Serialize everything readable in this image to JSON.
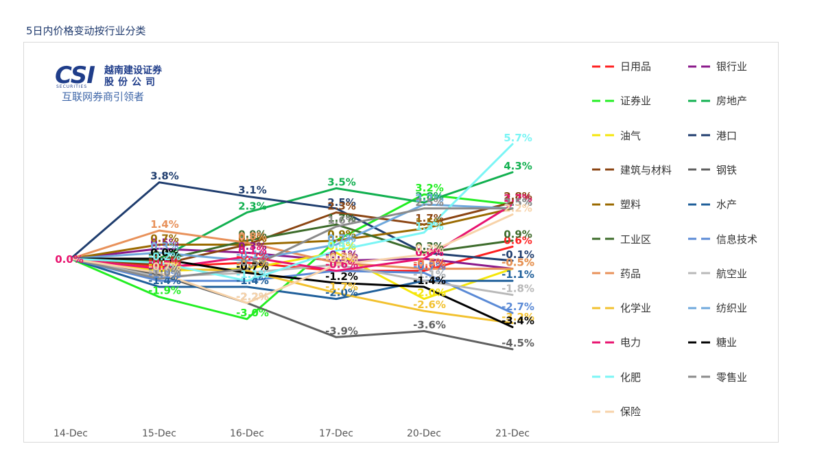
{
  "page": {
    "title": "5日内价格变动按行业分类"
  },
  "logo": {
    "mark": "CSI",
    "sub": "SECURITIES",
    "name_line1": "越南建设证券",
    "name_line2": "股份公司",
    "slogan": "互联网券商引领者"
  },
  "chart_data": {
    "type": "line",
    "categories": [
      "14-Dec",
      "15-Dec",
      "16-Dec",
      "17-Dec",
      "20-Dec",
      "21-Dec"
    ],
    "ylim": [
      -5.5,
      6.5
    ],
    "grid": false,
    "legend": "right",
    "series": [
      {
        "name": "日用品",
        "color": "#ff2020",
        "values": [
          0.0,
          -0.4,
          -0.2,
          -0.6,
          -0.6,
          0.6
        ]
      },
      {
        "name": "银行业",
        "color": "#8b1a8b",
        "values": [
          0.0,
          0.5,
          0.3,
          -0.1,
          0.0,
          -0.5
        ]
      },
      {
        "name": "证券业",
        "color": "#22ee22",
        "values": [
          0.0,
          -1.9,
          -3.0,
          0.9,
          3.2,
          2.7
        ]
      },
      {
        "name": "房地产",
        "color": "#12b050",
        "values": [
          0.0,
          0.0,
          2.3,
          3.5,
          2.8,
          4.3
        ]
      },
      {
        "name": "油气",
        "color": "#f5e60a",
        "values": [
          0.0,
          -0.6,
          -0.5,
          0.3,
          -2.0,
          -0.5
        ]
      },
      {
        "name": "港口",
        "color": "#1f3d6e",
        "values": [
          0.0,
          3.8,
          3.1,
          2.5,
          0.3,
          -0.1
        ]
      },
      {
        "name": "建筑与材料",
        "color": "#8b4513",
        "values": [
          0.0,
          -0.3,
          0.7,
          2.3,
          1.7,
          2.8
        ]
      },
      {
        "name": "钢铁",
        "color": "#606060",
        "values": [
          0.0,
          -0.8,
          -2.2,
          -3.9,
          -3.6,
          -4.5
        ]
      },
      {
        "name": "塑料",
        "color": "#9a6a00",
        "values": [
          0.0,
          0.7,
          0.7,
          0.9,
          1.5,
          2.5
        ]
      },
      {
        "name": "水产",
        "color": "#1f5f9a",
        "values": [
          0.0,
          -1.4,
          -1.4,
          -2.0,
          -1.1,
          -1.1
        ]
      },
      {
        "name": "工业区",
        "color": "#3c6b2a",
        "values": [
          0.0,
          -0.1,
          0.9,
          1.7,
          0.3,
          0.9
        ]
      },
      {
        "name": "信息技术",
        "color": "#5a8ad6",
        "values": [
          0.0,
          -1.1,
          -1.1,
          -0.6,
          -0.7,
          -2.7
        ]
      },
      {
        "name": "药品",
        "color": "#e8915a",
        "values": [
          0.0,
          1.4,
          0.8,
          -0.2,
          -0.5,
          -0.5
        ]
      },
      {
        "name": "航空业",
        "color": "#b8b8b8",
        "values": [
          0.0,
          -0.9,
          -0.7,
          -0.3,
          -1.1,
          -1.8
        ]
      },
      {
        "name": "化学业",
        "color": "#f2c12e",
        "values": [
          0.0,
          -0.5,
          -0.6,
          -1.7,
          -2.6,
          -3.2
        ]
      },
      {
        "name": "纺织业",
        "color": "#6fa8dc",
        "values": [
          0.0,
          0.3,
          -0.1,
          0.7,
          2.7,
          2.5
        ]
      },
      {
        "name": "电力",
        "color": "#e8136f",
        "values": [
          0.0,
          -0.5,
          0.1,
          -0.6,
          0.0,
          2.7
        ]
      },
      {
        "name": "糖业",
        "color": "#000000",
        "values": [
          0.0,
          0.0,
          -0.7,
          -1.2,
          -1.4,
          -3.4
        ]
      },
      {
        "name": "化肥",
        "color": "#7af5f5",
        "values": [
          0.0,
          -0.2,
          -1.1,
          0.4,
          1.3,
          5.7
        ]
      },
      {
        "name": "零售业",
        "color": "#8a8a8a",
        "values": [
          0.0,
          -1.0,
          -0.5,
          1.6,
          2.5,
          2.5
        ]
      },
      {
        "name": "保险",
        "color": "#f7d2a8",
        "values": [
          0.0,
          -0.7,
          -2.2,
          -0.3,
          0.2,
          2.2
        ]
      }
    ]
  }
}
